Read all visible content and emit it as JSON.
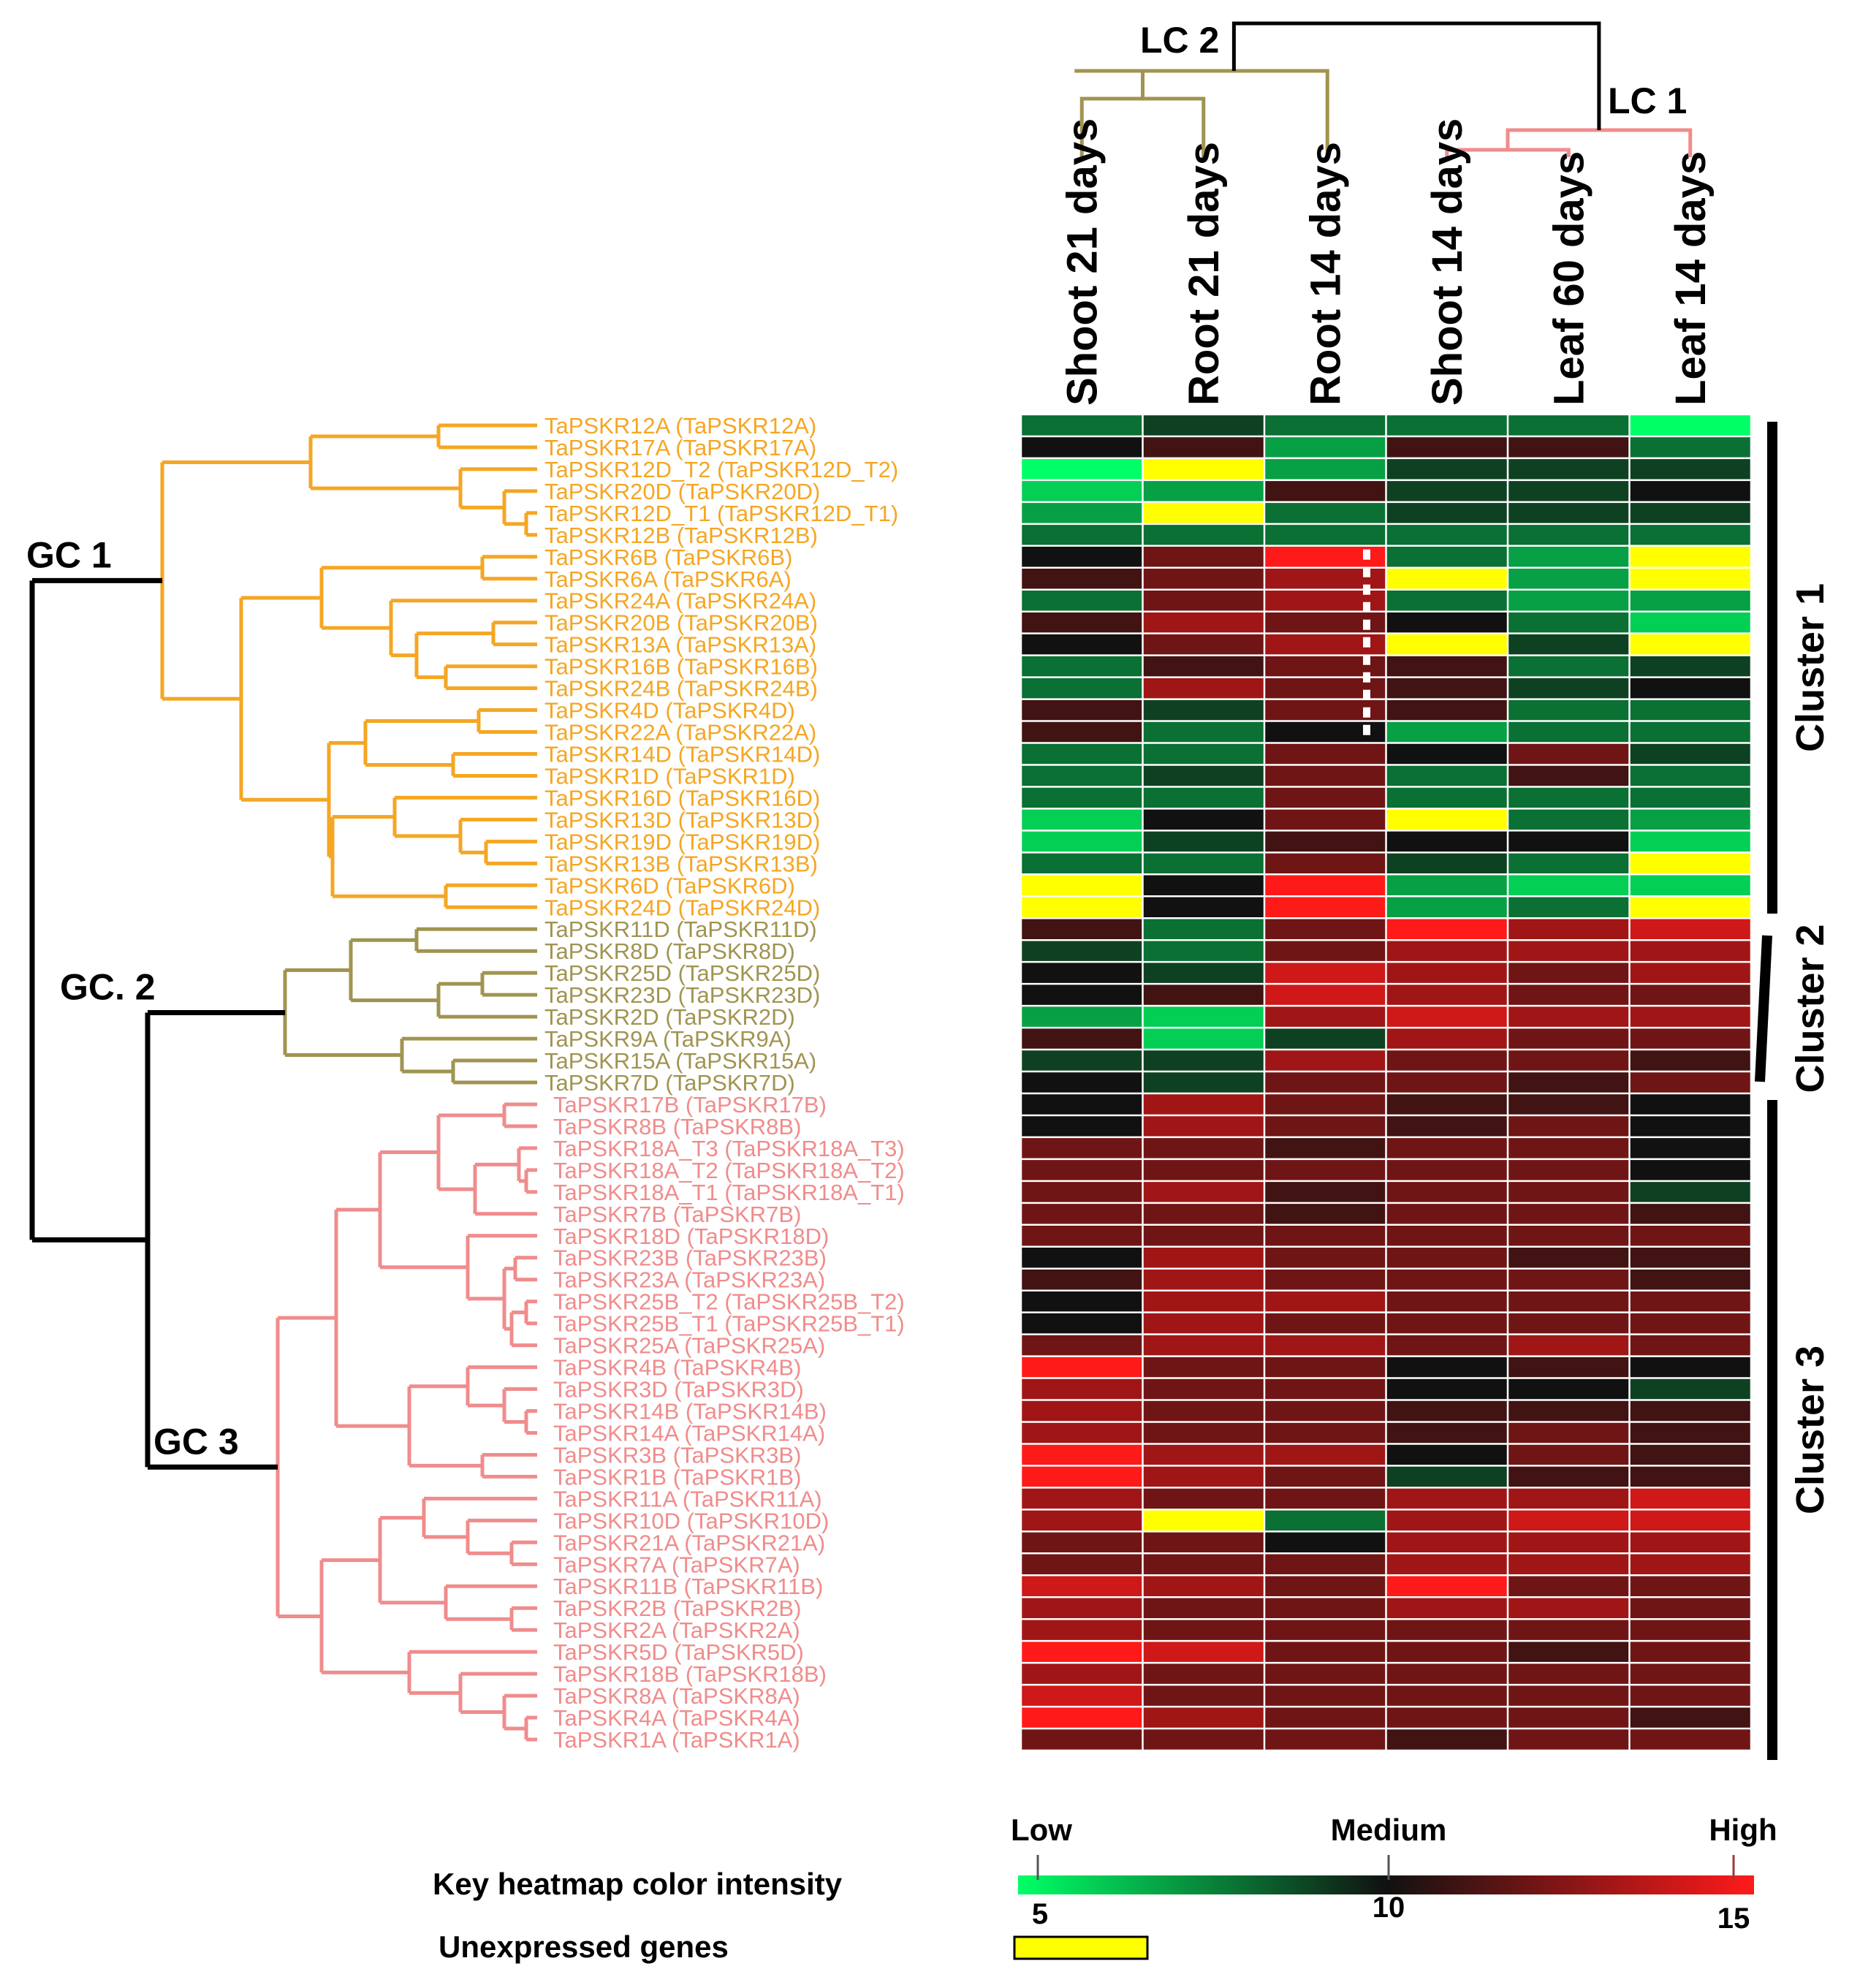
{
  "chart_data": {
    "type": "heatmap",
    "title": "",
    "columns": [
      "Shoot 21 days",
      "Root 21 days",
      "Root 14 days",
      "Shoot 14 days",
      "Leaf 60 days",
      "Leaf 14 days"
    ],
    "column_clusters": [
      {
        "label": "LC 2",
        "members": [
          "Shoot 21 days",
          "Root 21 days",
          "Root 14 days"
        ],
        "color": "#a09450"
      },
      {
        "label": "LC 1",
        "members": [
          "Shoot 14 days",
          "Leaf 60 days",
          "Leaf 14 days"
        ],
        "color": "#f08c8c"
      }
    ],
    "gene_clusters": [
      {
        "label": "GC 1",
        "color": "#f5a623",
        "rows": [
          0,
          22
        ]
      },
      {
        "label": "GC. 2",
        "color": "#a09450",
        "rows": [
          23,
          30
        ]
      },
      {
        "label": "GC 3",
        "color": "#f08c8c",
        "rows": [
          31,
          60
        ]
      }
    ],
    "row_clusters": [
      {
        "label": "Cluster 1",
        "rows": [
          0,
          22
        ]
      },
      {
        "label": "Cluster 2",
        "rows": [
          23,
          30
        ]
      },
      {
        "label": "Cluster 3",
        "rows": [
          31,
          60
        ]
      }
    ],
    "rows": [
      "TaPSKR12A (TaPSKR12A)",
      "TaPSKR17A (TaPSKR17A)",
      "TaPSKR12D_T2 (TaPSKR12D_T2)",
      "TaPSKR20D (TaPSKR20D)",
      "TaPSKR12D_T1 (TaPSKR12D_T1)",
      "TaPSKR12B (TaPSKR12B)",
      "TaPSKR6B (TaPSKR6B)",
      "TaPSKR6A (TaPSKR6A)",
      "TaPSKR24A (TaPSKR24A)",
      "TaPSKR20B (TaPSKR20B)",
      "TaPSKR13A (TaPSKR13A)",
      "TaPSKR16B (TaPSKR16B)",
      "TaPSKR24B (TaPSKR24B)",
      "TaPSKR4D (TaPSKR4D)",
      "TaPSKR22A (TaPSKR22A)",
      "TaPSKR14D (TaPSKR14D)",
      "TaPSKR1D (TaPSKR1D)",
      "TaPSKR16D (TaPSKR16D)",
      "TaPSKR13D (TaPSKR13D)",
      "TaPSKR19D (TaPSKR19D)",
      "TaPSKR13B (TaPSKR13B)",
      "TaPSKR6D (TaPSKR6D)",
      "TaPSKR24D (TaPSKR24D)",
      "TaPSKR11D (TaPSKR11D)",
      "TaPSKR8D (TaPSKR8D)",
      "TaPSKR25D (TaPSKR25D)",
      "TaPSKR23D (TaPSKR23D)",
      "TaPSKR2D (TaPSKR2D)",
      "TaPSKR9A (TaPSKR9A)",
      "TaPSKR15A (TaPSKR15A)",
      "TaPSKR7D (TaPSKR7D)",
      "TaPSKR17B (TaPSKR17B)",
      "TaPSKR8B (TaPSKR8B)",
      "TaPSKR18A_T3 (TaPSKR18A_T3)",
      "TaPSKR18A_T2 (TaPSKR18A_T2)",
      "TaPSKR18A_T1 (TaPSKR18A_T1)",
      "TaPSKR7B (TaPSKR7B)",
      "TaPSKR18D (TaPSKR18D)",
      "TaPSKR23B (TaPSKR23B)",
      "TaPSKR23A (TaPSKR23A)",
      "TaPSKR25B_T2 (TaPSKR25B_T2)",
      "TaPSKR25B_T1 (TaPSKR25B_T1)",
      "TaPSKR25A (TaPSKR25A)",
      "TaPSKR4B (TaPSKR4B)",
      "TaPSKR3D (TaPSKR3D)",
      "TaPSKR14B (TaPSKR14B)",
      "TaPSKR14A (TaPSKR14A)",
      "TaPSKR3B (TaPSKR3B)",
      "TaPSKR1B (TaPSKR1B)",
      "TaPSKR11A (TaPSKR11A)",
      "TaPSKR10D (TaPSKR10D)",
      "TaPSKR21A (TaPSKR21A)",
      "TaPSKR7A (TaPSKR7A)",
      "TaPSKR11B (TaPSKR11B)",
      "TaPSKR2B (TaPSKR2B)",
      "TaPSKR2A (TaPSKR2A)",
      "TaPSKR5D (TaPSKR5D)",
      "TaPSKR18B (TaPSKR18B)",
      "TaPSKR8A (TaPSKR8A)",
      "TaPSKR4A (TaPSKR4A)",
      "TaPSKR1A (TaPSKR1A)"
    ],
    "values": [
      [
        8,
        9,
        8,
        8,
        8,
        5
      ],
      [
        10,
        11,
        7,
        11,
        11,
        8
      ],
      [
        5,
        null,
        7,
        9,
        9,
        9
      ],
      [
        6,
        7,
        11,
        9,
        9,
        10
      ],
      [
        7,
        null,
        8,
        9,
        9,
        9
      ],
      [
        8,
        8,
        8,
        8,
        8,
        8
      ],
      [
        10,
        12,
        15,
        8,
        7,
        null
      ],
      [
        11,
        12,
        13,
        null,
        7,
        null
      ],
      [
        8,
        12,
        13,
        8,
        7,
        7
      ],
      [
        11,
        13,
        12,
        10,
        8,
        6
      ],
      [
        10,
        12,
        13,
        null,
        9,
        null
      ],
      [
        8,
        11,
        12,
        11,
        8,
        9
      ],
      [
        8,
        13,
        12,
        11,
        9,
        10
      ],
      [
        11,
        9,
        12,
        11,
        8,
        8
      ],
      [
        11,
        8,
        10,
        7,
        8,
        8
      ],
      [
        8,
        8,
        12,
        10,
        12,
        9
      ],
      [
        8,
        9,
        12,
        8,
        11,
        8
      ],
      [
        8,
        8,
        12,
        8,
        8,
        8
      ],
      [
        6,
        10,
        12,
        null,
        8,
        7
      ],
      [
        6,
        9,
        11,
        10,
        10,
        6
      ],
      [
        8,
        8,
        12,
        9,
        8,
        null
      ],
      [
        null,
        10,
        15,
        7,
        6,
        6
      ],
      [
        null,
        10,
        15,
        7,
        8,
        null
      ],
      [
        11,
        8,
        12,
        15,
        13,
        14
      ],
      [
        9,
        8,
        12,
        13,
        13,
        13
      ],
      [
        10,
        9,
        14,
        13,
        12,
        13
      ],
      [
        10,
        11,
        14,
        13,
        12,
        12
      ],
      [
        7,
        6,
        13,
        14,
        13,
        13
      ],
      [
        11,
        6,
        9,
        13,
        12,
        12
      ],
      [
        9,
        9,
        13,
        12,
        12,
        11
      ],
      [
        10,
        9,
        12,
        12,
        11,
        12
      ],
      [
        10,
        13,
        12,
        11,
        11,
        10
      ],
      [
        10,
        13,
        12,
        11,
        12,
        10
      ],
      [
        12,
        12,
        11,
        12,
        12,
        10
      ],
      [
        12,
        12,
        12,
        12,
        12,
        10
      ],
      [
        12,
        13,
        11,
        12,
        12,
        9
      ],
      [
        12,
        12,
        11,
        12,
        12,
        11
      ],
      [
        12,
        12,
        12,
        12,
        12,
        12
      ],
      [
        10,
        13,
        12,
        12,
        11,
        11
      ],
      [
        11,
        13,
        12,
        12,
        12,
        11
      ],
      [
        10,
        13,
        13,
        12,
        12,
        12
      ],
      [
        10,
        13,
        12,
        12,
        12,
        12
      ],
      [
        12,
        13,
        13,
        12,
        13,
        12
      ],
      [
        15,
        12,
        12,
        10,
        11,
        10
      ],
      [
        13,
        12,
        12,
        10,
        10,
        9
      ],
      [
        13,
        12,
        12,
        11,
        11,
        11
      ],
      [
        13,
        12,
        12,
        11,
        12,
        11
      ],
      [
        15,
        13,
        13,
        10,
        12,
        11
      ],
      [
        15,
        13,
        12,
        9,
        11,
        11
      ],
      [
        13,
        12,
        12,
        13,
        13,
        14
      ],
      [
        13,
        null,
        8,
        13,
        14,
        14
      ],
      [
        12,
        12,
        10,
        13,
        13,
        13
      ],
      [
        12,
        12,
        12,
        13,
        13,
        13
      ],
      [
        14,
        13,
        12,
        15,
        12,
        12
      ],
      [
        13,
        12,
        12,
        13,
        13,
        12
      ],
      [
        13,
        12,
        12,
        12,
        12,
        12
      ],
      [
        15,
        14,
        12,
        12,
        11,
        12
      ],
      [
        13,
        12,
        12,
        12,
        12,
        12
      ],
      [
        14,
        12,
        12,
        12,
        12,
        12
      ],
      [
        15,
        13,
        12,
        12,
        12,
        11
      ],
      [
        12,
        12,
        12,
        11,
        12,
        12
      ]
    ],
    "legend": {
      "title": "Key heatmap color intensity",
      "low_label": "Low",
      "medium_label": "Medium",
      "high_label": "High",
      "ticks": [
        "5",
        "10",
        "15"
      ],
      "range": [
        5,
        15
      ],
      "colors": {
        "low": "#00ff66",
        "mid": "#111111",
        "high": "#ff1a1a"
      },
      "unexpressed_label": "Unexpressed genes",
      "unexpressed_color": "#ffff00"
    }
  }
}
